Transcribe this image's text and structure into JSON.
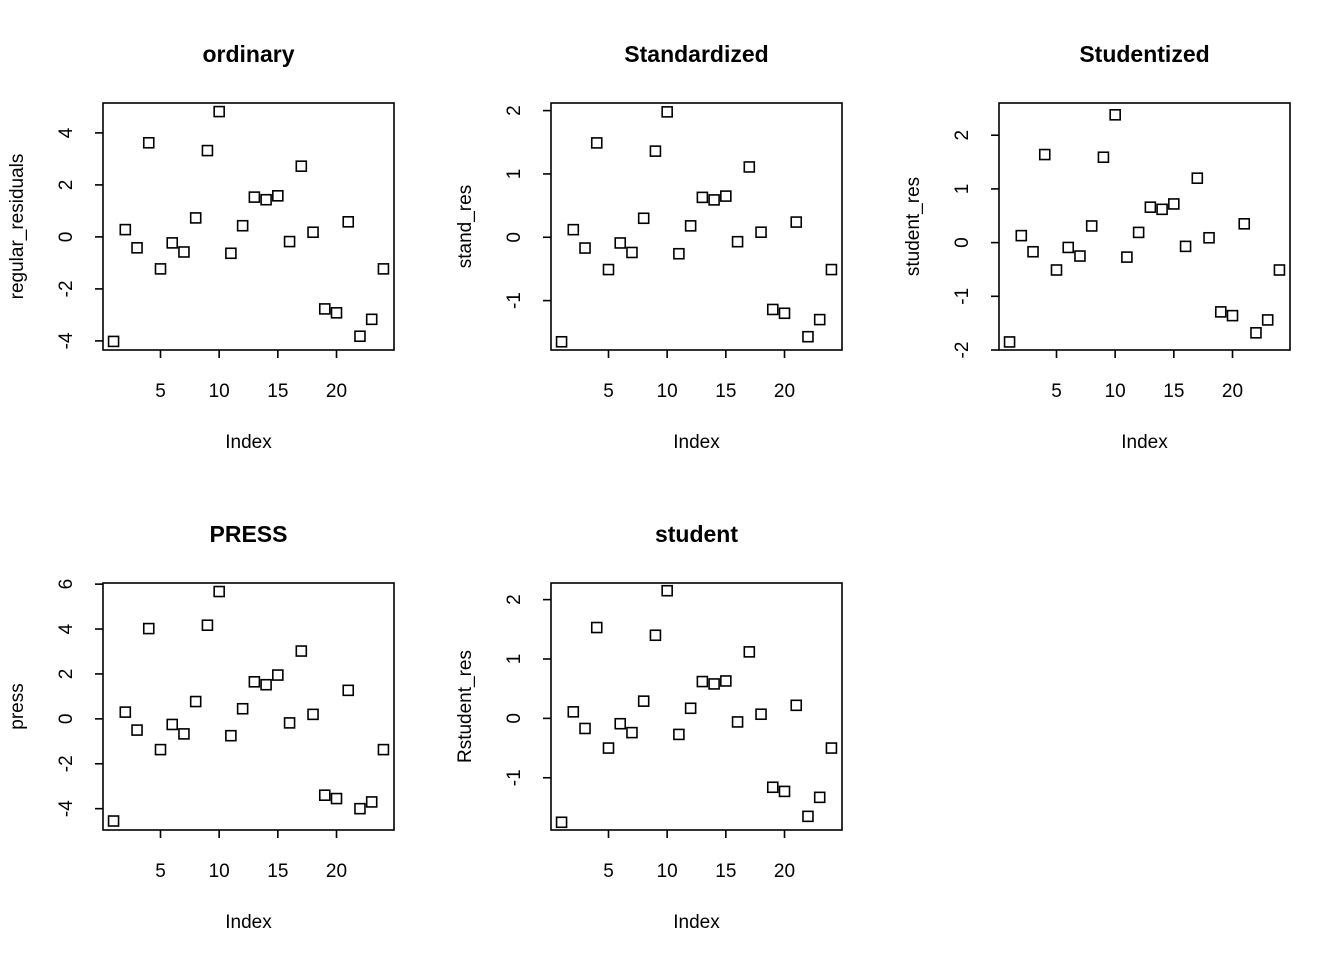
{
  "chart_data": [
    {
      "type": "scatter",
      "title": "ordinary",
      "xlabel": "Index",
      "ylabel": "regular_residuals",
      "xlim": [
        0.1,
        24.9
      ],
      "ylim": [
        -4.35,
        5.15
      ],
      "xticks": [
        5,
        10,
        15,
        20
      ],
      "yticks": [
        -4,
        -2,
        0,
        2,
        4
      ],
      "x": [
        1,
        2,
        3,
        4,
        5,
        6,
        7,
        8,
        9,
        10,
        11,
        12,
        13,
        14,
        15,
        16,
        17,
        18,
        19,
        20,
        21,
        22,
        23,
        24
      ],
      "y": [
        -4.02,
        0.28,
        -0.42,
        3.62,
        -1.23,
        -0.23,
        -0.58,
        0.73,
        3.32,
        4.82,
        -0.63,
        0.43,
        1.53,
        1.43,
        1.58,
        -0.18,
        2.72,
        0.18,
        -2.77,
        -2.92,
        0.58,
        -3.82,
        -3.17,
        -1.23
      ]
    },
    {
      "type": "scatter",
      "title": "Standardized",
      "xlabel": "Index",
      "ylabel": "stand_res",
      "xlim": [
        0.1,
        24.9
      ],
      "ylim": [
        -1.78,
        2.12
      ],
      "xticks": [
        5,
        10,
        15,
        20
      ],
      "yticks": [
        -1,
        0,
        1,
        2
      ],
      "x": [
        1,
        2,
        3,
        4,
        5,
        6,
        7,
        8,
        9,
        10,
        11,
        12,
        13,
        14,
        15,
        16,
        17,
        18,
        19,
        20,
        21,
        22,
        23,
        24
      ],
      "y": [
        -1.65,
        0.12,
        -0.17,
        1.49,
        -0.51,
        -0.09,
        -0.24,
        0.3,
        1.36,
        1.98,
        -0.26,
        0.18,
        0.63,
        0.59,
        0.65,
        -0.07,
        1.11,
        0.08,
        -1.14,
        -1.2,
        0.24,
        -1.57,
        -1.3,
        -0.51
      ]
    },
    {
      "type": "scatter",
      "title": "Studentized",
      "xlabel": "Index",
      "ylabel": "student_res",
      "xlim": [
        0.1,
        24.9
      ],
      "ylim": [
        -2.0,
        2.6
      ],
      "xticks": [
        5,
        10,
        15,
        20
      ],
      "yticks": [
        -2,
        -1,
        0,
        1,
        2
      ],
      "x": [
        1,
        2,
        3,
        4,
        5,
        6,
        7,
        8,
        9,
        10,
        11,
        12,
        13,
        14,
        15,
        16,
        17,
        18,
        19,
        20,
        21,
        22,
        23,
        24
      ],
      "y": [
        -1.85,
        0.13,
        -0.17,
        1.64,
        -0.51,
        -0.09,
        -0.25,
        0.31,
        1.59,
        2.38,
        -0.27,
        0.19,
        0.66,
        0.62,
        0.72,
        -0.07,
        1.2,
        0.09,
        -1.29,
        -1.36,
        0.35,
        -1.68,
        -1.44,
        -0.51
      ]
    },
    {
      "type": "scatter",
      "title": "PRESS",
      "xlabel": "Index",
      "ylabel": "press",
      "xlim": [
        0.1,
        24.9
      ],
      "ylim": [
        -4.95,
        6.05
      ],
      "xticks": [
        5,
        10,
        15,
        20
      ],
      "yticks": [
        -4,
        -2,
        0,
        2,
        4,
        6
      ],
      "x": [
        1,
        2,
        3,
        4,
        5,
        6,
        7,
        8,
        9,
        10,
        11,
        12,
        13,
        14,
        15,
        16,
        17,
        18,
        19,
        20,
        21,
        22,
        23,
        24
      ],
      "y": [
        -4.55,
        0.3,
        -0.5,
        4.02,
        -1.37,
        -0.25,
        -0.67,
        0.77,
        4.17,
        5.67,
        -0.75,
        0.45,
        1.65,
        1.52,
        1.95,
        -0.18,
        3.02,
        0.2,
        -3.4,
        -3.55,
        1.27,
        -4.0,
        -3.7,
        -1.37
      ]
    },
    {
      "type": "scatter",
      "title": "student",
      "xlabel": "Index",
      "ylabel": "Rstudent_res",
      "xlim": [
        0.1,
        24.9
      ],
      "ylim": [
        -1.88,
        2.28
      ],
      "xticks": [
        5,
        10,
        15,
        20
      ],
      "yticks": [
        -1,
        0,
        1,
        2
      ],
      "x": [
        1,
        2,
        3,
        4,
        5,
        6,
        7,
        8,
        9,
        10,
        11,
        12,
        13,
        14,
        15,
        16,
        17,
        18,
        19,
        20,
        21,
        22,
        23,
        24
      ],
      "y": [
        -1.75,
        0.11,
        -0.17,
        1.53,
        -0.5,
        -0.09,
        -0.24,
        0.29,
        1.4,
        2.15,
        -0.27,
        0.17,
        0.62,
        0.58,
        0.63,
        -0.06,
        1.12,
        0.07,
        -1.16,
        -1.23,
        0.22,
        -1.65,
        -1.33,
        -0.5
      ]
    }
  ]
}
